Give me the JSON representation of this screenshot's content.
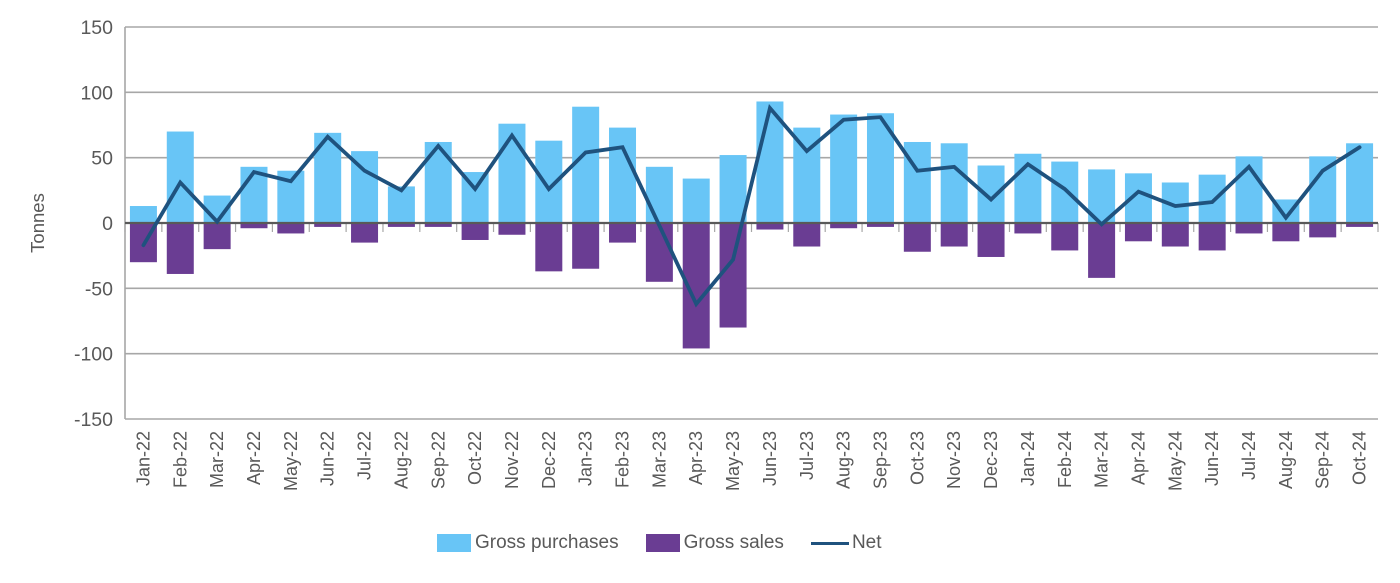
{
  "chart_data": {
    "type": "bar",
    "subtype": "combo-bar-line",
    "title": "",
    "xlabel": "",
    "ylabel": "Tonnes",
    "ylim": [
      -150,
      150
    ],
    "yticks": [
      150,
      100,
      50,
      0,
      -50,
      -100,
      -150
    ],
    "grid": "horizontal",
    "legend_position": "bottom",
    "categories": [
      "Jan-22",
      "Feb-22",
      "Mar-22",
      "Apr-22",
      "May-22",
      "Jun-22",
      "Jul-22",
      "Aug-22",
      "Sep-22",
      "Oct-22",
      "Nov-22",
      "Dec-22",
      "Jan-23",
      "Feb-23",
      "Mar-23",
      "Apr-23",
      "May-23",
      "Jun-23",
      "Jul-23",
      "Aug-23",
      "Sep-23",
      "Oct-23",
      "Nov-23",
      "Dec-23",
      "Jan-24",
      "Feb-24",
      "Mar-24",
      "Apr-24",
      "May-24",
      "Jun-24",
      "Jul-24",
      "Aug-24",
      "Sep-24",
      "Oct-24"
    ],
    "series": [
      {
        "name": "Gross purchases",
        "type": "bar",
        "color": "#68C5F6",
        "values": [
          13,
          70,
          21,
          43,
          40,
          69,
          55,
          28,
          62,
          39,
          76,
          63,
          89,
          73,
          43,
          34,
          52,
          93,
          73,
          83,
          84,
          62,
          61,
          44,
          53,
          47,
          41,
          38,
          31,
          37,
          51,
          18,
          51,
          61
        ]
      },
      {
        "name": "Gross sales",
        "type": "bar",
        "color": "#6A3D93",
        "values": [
          -30,
          -39,
          -20,
          -4,
          -8,
          -3,
          -15,
          -3,
          -3,
          -13,
          -9,
          -37,
          -35,
          -15,
          -45,
          -96,
          -80,
          -5,
          -18,
          -4,
          -3,
          -22,
          -18,
          -26,
          -8,
          -21,
          -42,
          -14,
          -18,
          -21,
          -8,
          -14,
          -11,
          -3
        ]
      },
      {
        "name": "Net",
        "type": "line",
        "color": "#1F527E",
        "values": [
          -17,
          31,
          1,
          39,
          32,
          66,
          40,
          25,
          59,
          26,
          67,
          26,
          54,
          58,
          -2,
          -62,
          -28,
          88,
          55,
          79,
          81,
          40,
          43,
          18,
          45,
          26,
          -1,
          24,
          13,
          16,
          43,
          4,
          40,
          58
        ]
      }
    ]
  },
  "colors": {
    "gridline": "#A7A7A7",
    "zero_line": "#595959",
    "axis_text": "#595959",
    "background": "#FFFFFF"
  }
}
